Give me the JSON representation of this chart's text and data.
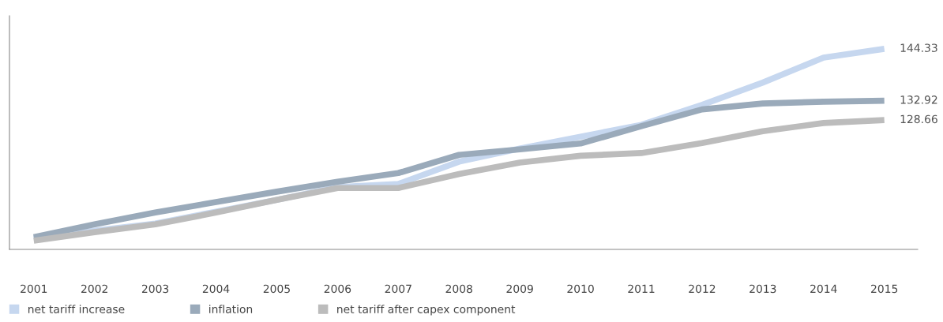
{
  "chart_data": {
    "type": "line",
    "categories": [
      "2001",
      "2002",
      "2003",
      "2004",
      "2005",
      "2006",
      "2007",
      "2008",
      "2009",
      "2010",
      "2011",
      "2012",
      "2013",
      "2014",
      "2015"
    ],
    "series": [
      {
        "name": "net tariff increase",
        "color": "#c6d7ef",
        "values": [
          102.6,
          104.3,
          105.9,
          108.5,
          111.1,
          113.9,
          114.6,
          119.5,
          122.4,
          125.0,
          127.6,
          132.0,
          136.9,
          142.4,
          144.33
        ],
        "value_labels": [
          null,
          null,
          null,
          null,
          null,
          null,
          null,
          null,
          null,
          null,
          null,
          null,
          null,
          null,
          "144.33"
        ]
      },
      {
        "name": "inflation",
        "color": "#9aaaba",
        "values": [
          102.9,
          105.7,
          108.3,
          110.6,
          112.9,
          115.1,
          117.0,
          121.0,
          122.2,
          123.5,
          127.3,
          131.0,
          132.3,
          132.7,
          132.92
        ],
        "value_labels": [
          null,
          null,
          null,
          null,
          null,
          null,
          null,
          null,
          null,
          null,
          null,
          null,
          null,
          null,
          "132.92"
        ]
      },
      {
        "name": "net tariff after capex component",
        "color": "#bcbcbc",
        "values": [
          102.1,
          104.0,
          105.7,
          108.3,
          111.1,
          113.7,
          113.7,
          116.8,
          119.3,
          120.8,
          121.4,
          123.6,
          126.2,
          128.0,
          128.66
        ],
        "value_labels": [
          null,
          null,
          null,
          null,
          null,
          null,
          null,
          null,
          null,
          null,
          null,
          null,
          null,
          null,
          "128.66"
        ]
      }
    ],
    "ylim": [
      100.2,
      151.6
    ],
    "tick_labels": "x",
    "grid": false,
    "legend": "bottom left",
    "marker": "none",
    "line_style": "solid"
  }
}
